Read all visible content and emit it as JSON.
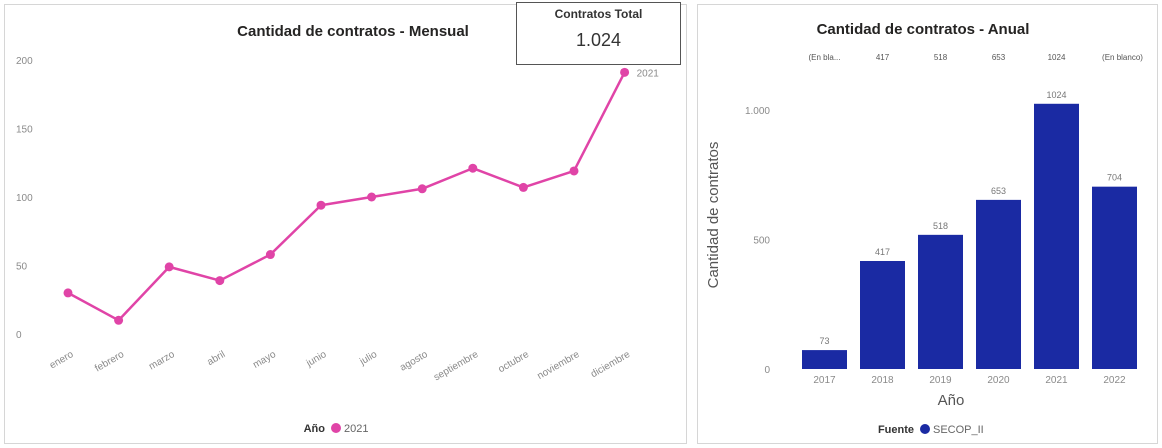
{
  "kpi": {
    "title": "Contratos Total",
    "value": "1.024"
  },
  "chart_data": [
    {
      "type": "line",
      "title": "Cantidad de contratos - Mensual",
      "xlabel": "",
      "ylabel": "",
      "ylim": [
        0,
        200
      ],
      "yticks": [
        0,
        50,
        100,
        150,
        200
      ],
      "categories": [
        "enero",
        "febrero",
        "marzo",
        "abril",
        "mayo",
        "junio",
        "julio",
        "agosto",
        "septiembre",
        "octubre",
        "noviembre",
        "diciembre"
      ],
      "series": [
        {
          "name": "2021",
          "color": "#e044a7",
          "values": [
            30,
            10,
            49,
            39,
            58,
            94,
            100,
            106,
            121,
            107,
            119,
            191
          ]
        }
      ],
      "end_label": "2021",
      "legend": {
        "title": "Año",
        "placement": "bottom-center"
      },
      "grid": false
    },
    {
      "type": "bar",
      "title": "Cantidad de contratos - Anual",
      "xlabel": "Año",
      "ylabel": "Cantidad de contratos",
      "ylim": [
        0,
        1100
      ],
      "yticks": [
        0,
        500,
        1000
      ],
      "ytick_labels": [
        "0",
        "500",
        "1.000"
      ],
      "categories": [
        "2017",
        "2018",
        "2019",
        "2020",
        "2021",
        "2022"
      ],
      "series": [
        {
          "name": "SECOP_II",
          "color": "#1a2aa3",
          "values": [
            73,
            417,
            518,
            653,
            1024,
            704
          ]
        }
      ],
      "totals_row": [
        "(En bla...",
        "417",
        "518",
        "653",
        "1024",
        "(En blanco)"
      ],
      "legend": {
        "title": "Fuente",
        "placement": "bottom-center"
      },
      "grid": false
    }
  ]
}
